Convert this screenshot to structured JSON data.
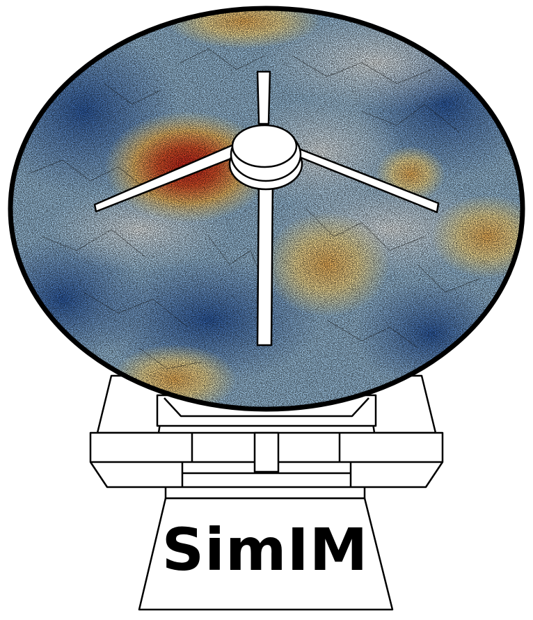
{
  "logo": {
    "wordmark": "SimIM",
    "icon": "radio-telescope-dish-icon",
    "colors": {
      "outline": "#000000",
      "structure_fill": "#ffffff",
      "map_cold": "#3e6db3",
      "map_mid": "#d9e9f3",
      "map_warm": "#f6e7a0",
      "map_hot": "#d9301e",
      "filaments": "#111111"
    }
  }
}
